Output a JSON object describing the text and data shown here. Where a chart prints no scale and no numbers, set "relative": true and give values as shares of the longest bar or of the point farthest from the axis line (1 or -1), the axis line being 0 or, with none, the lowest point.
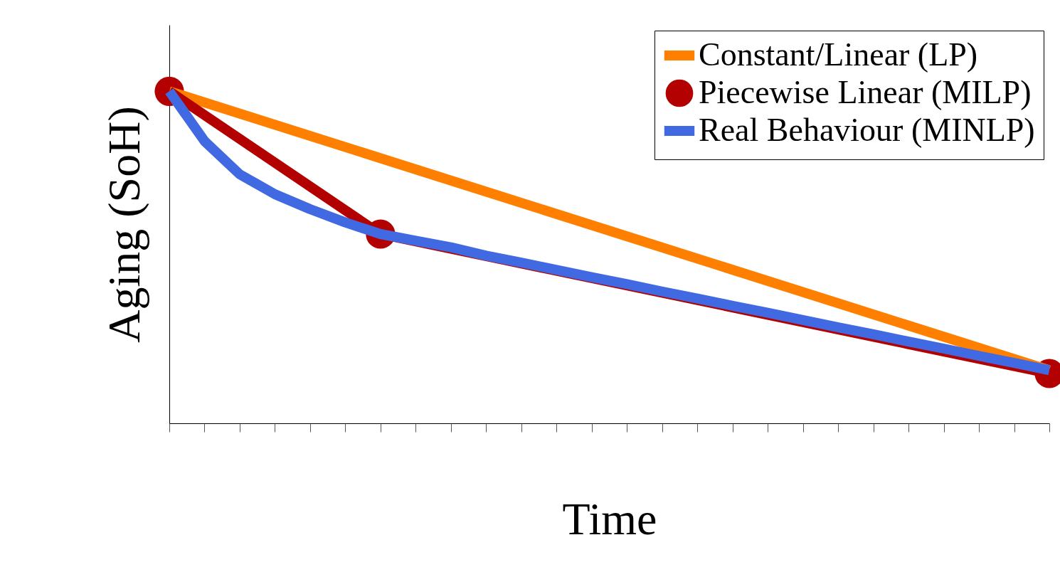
{
  "chart_data": {
    "type": "line",
    "relative": true,
    "xlabel": "Time",
    "ylabel": "Aging (SoH)",
    "categories": [
      null,
      null,
      null,
      null,
      null,
      null,
      null,
      null,
      null,
      null,
      null,
      null,
      null,
      null,
      null,
      null,
      null,
      null,
      null,
      null,
      null,
      null,
      null,
      null,
      null,
      null
    ],
    "legend": "top right",
    "series": [
      {
        "name": "Constant/Linear (LP)",
        "color": "#ff8000",
        "marker": "none",
        "values": [
          1.0,
          null,
          null,
          null,
          null,
          null,
          null,
          null,
          null,
          null,
          null,
          null,
          null,
          null,
          null,
          null,
          null,
          null,
          null,
          null,
          null,
          null,
          null,
          null,
          null,
          0.16
        ]
      },
      {
        "name": "Piecewise Linear (MILP)",
        "color": "#b30000",
        "marker": "circle",
        "values": [
          1.0,
          null,
          null,
          null,
          null,
          null,
          0.57,
          null,
          null,
          null,
          null,
          null,
          null,
          null,
          null,
          null,
          null,
          null,
          null,
          null,
          null,
          null,
          null,
          null,
          null,
          0.15
        ]
      },
      {
        "name": "Real Behaviour (MINLP)",
        "color": "#4169e1",
        "marker": "none",
        "values": [
          1.0,
          0.85,
          0.75,
          0.69,
          0.645,
          0.605,
          0.57,
          0.55,
          0.53,
          0.505,
          0.484,
          0.462,
          0.44,
          0.419,
          0.397,
          0.376,
          0.354,
          0.333,
          0.311,
          0.289,
          0.268,
          0.246,
          0.225,
          0.203,
          0.182,
          0.16
        ]
      }
    ]
  }
}
